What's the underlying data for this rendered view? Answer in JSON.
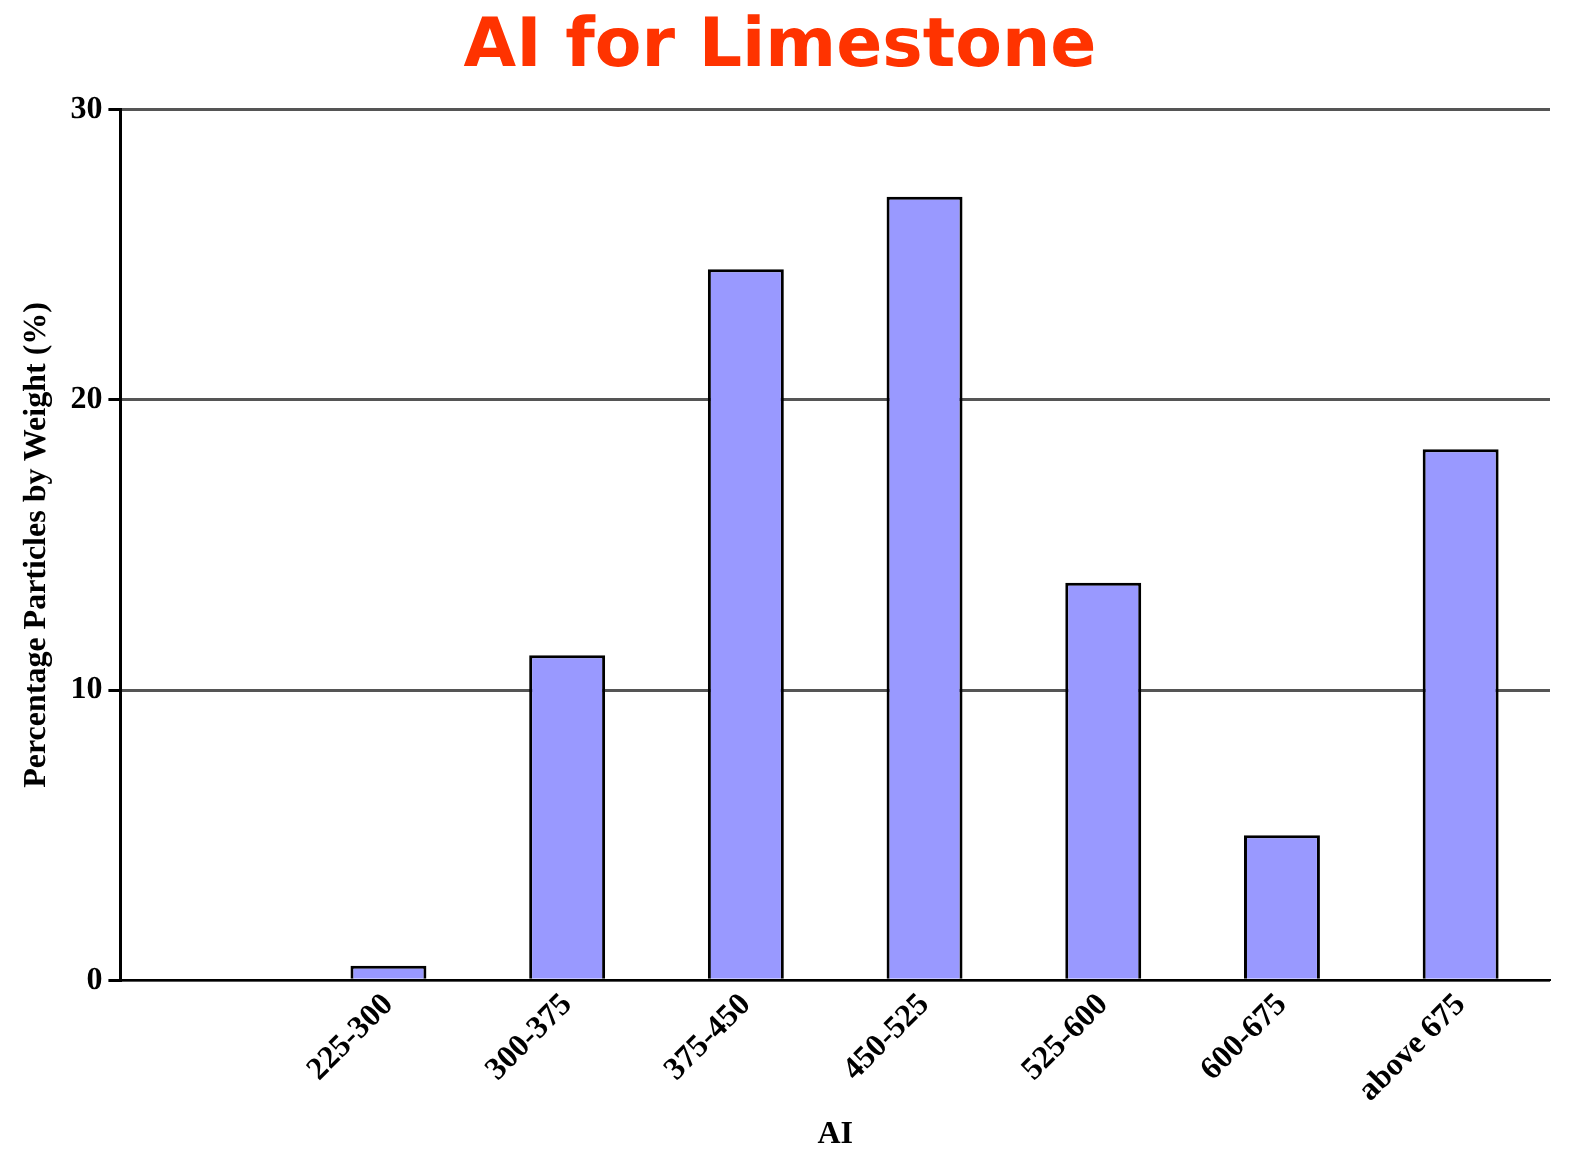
{
  "chart_data": {
    "type": "bar",
    "title": "AI for Limestone",
    "xlabel": "AI",
    "ylabel": "Percentage Particles by Weight (%)",
    "categories": [
      null,
      "225-300",
      "300-375",
      "375-450",
      "450-525",
      "525-600",
      "600-675",
      "above 675"
    ],
    "values": [
      null,
      0.5,
      11.2,
      24.5,
      27.0,
      13.7,
      5.0,
      18.3
    ],
    "color": "#9999ff",
    "ylim": [
      0,
      30
    ],
    "yticks": [
      0,
      10,
      20,
      30
    ],
    "grid": "y",
    "legend": false
  }
}
